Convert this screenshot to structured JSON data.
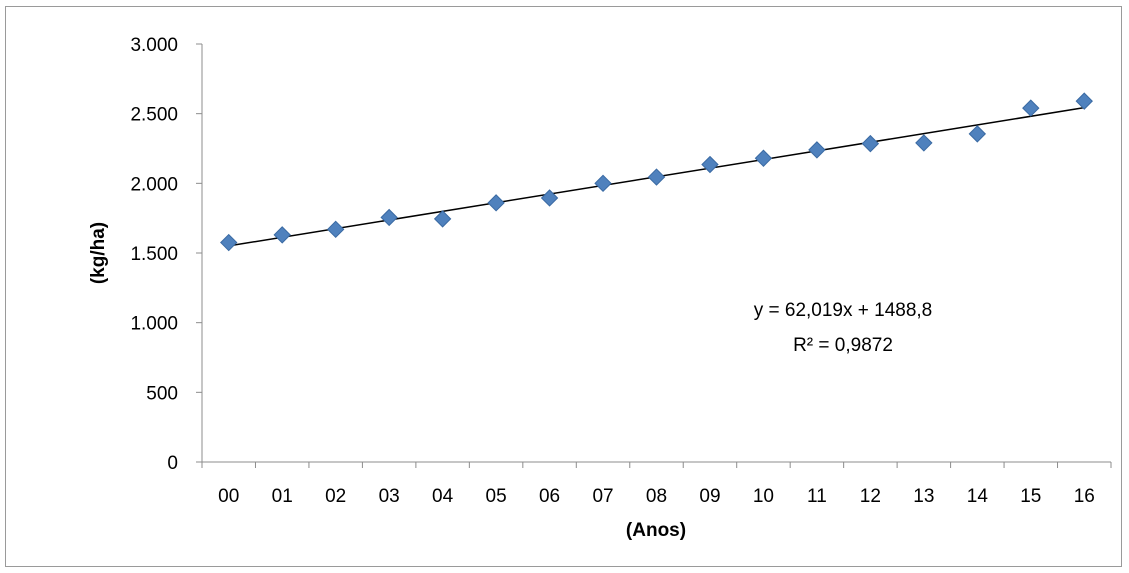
{
  "chart_data": {
    "type": "scatter",
    "xlabel": "(Anos)",
    "ylabel": "(kg/ha)",
    "categories": [
      "00",
      "01",
      "02",
      "03",
      "04",
      "05",
      "06",
      "07",
      "08",
      "09",
      "10",
      "11",
      "12",
      "13",
      "14",
      "15",
      "16"
    ],
    "series": [
      {
        "values": [
          1575,
          1630,
          1670,
          1755,
          1745,
          1860,
          1895,
          2000,
          2045,
          2135,
          2180,
          2240,
          2285,
          2290,
          2355,
          2540,
          2590
        ]
      }
    ],
    "trendline": {
      "slope": 62.019,
      "intercept": 1488.8
    },
    "annotations": [
      "y = 62,019x + 1488,8",
      "R² = 0,9872"
    ],
    "ylim": [
      0,
      3000
    ],
    "yticks": [
      0,
      500,
      1000,
      1500,
      2000,
      2500,
      3000
    ],
    "ytick_labels": [
      "0",
      "500",
      "1.000",
      "1.500",
      "2.000",
      "2.500",
      "3.000"
    ],
    "marker": "diamond",
    "marker_color": "#4f81bd",
    "grid": false,
    "legend": "none"
  }
}
